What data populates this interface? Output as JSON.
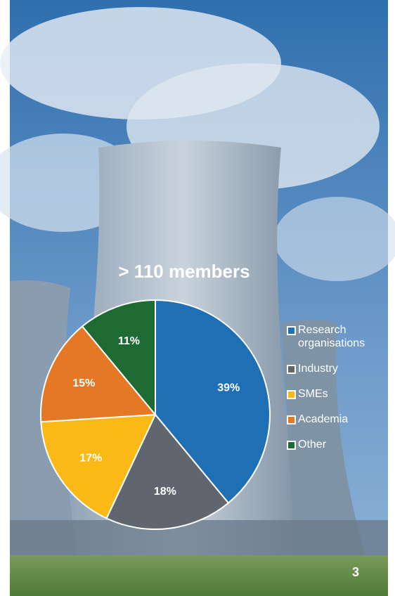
{
  "chart_data": {
    "type": "pie",
    "title": "> 110 members",
    "categories": [
      "Research organisations",
      "Industry",
      "SMEs",
      "Academia",
      "Other"
    ],
    "values": [
      39,
      18,
      17,
      15,
      11
    ],
    "value_labels": [
      "39%",
      "18%",
      "17%",
      "15%",
      "11%"
    ],
    "colors": [
      "#1f6fb4",
      "#5f666f",
      "#fbb917",
      "#e57825",
      "#1d6a32"
    ]
  },
  "page_number": "3"
}
